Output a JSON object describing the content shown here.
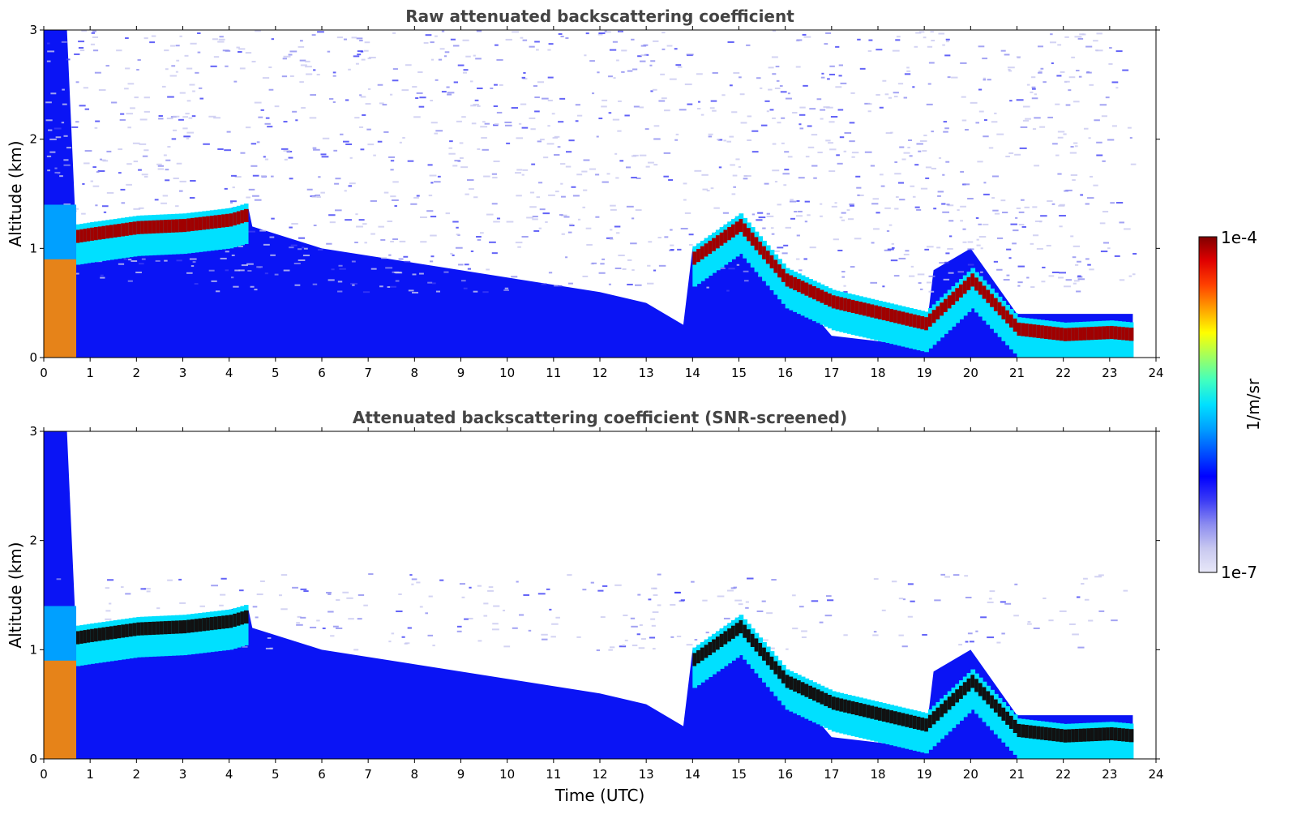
{
  "chart_data": [
    {
      "type": "heatmap",
      "title": "Raw attenuated backscattering coefficient",
      "xlabel": "",
      "ylabel": "Altitude (km)",
      "xlim": [
        0,
        24
      ],
      "ylim": [
        0,
        3
      ],
      "xticks": [
        "0",
        "1",
        "2",
        "3",
        "4",
        "5",
        "6",
        "7",
        "8",
        "9",
        "10",
        "11",
        "12",
        "13",
        "14",
        "15",
        "16",
        "17",
        "18",
        "19",
        "20",
        "21",
        "22",
        "23",
        "24"
      ],
      "yticks": [
        "0",
        "1",
        "2",
        "3"
      ],
      "data_end_time": 23.5,
      "cloud_layer": {
        "times": [
          0.7,
          1,
          2,
          3,
          4,
          4.4,
          14,
          15,
          16,
          17,
          18,
          19,
          20,
          21,
          22,
          23,
          23.5
        ],
        "altitudes_km": [
          1.1,
          1.12,
          1.18,
          1.2,
          1.25,
          1.3,
          0.9,
          1.2,
          0.7,
          0.5,
          0.4,
          0.3,
          0.7,
          0.25,
          0.2,
          0.22,
          0.2
        ]
      }
    },
    {
      "type": "heatmap",
      "title": "Attenuated backscattering coefficient (SNR-screened)",
      "xlabel": "Time (UTC)",
      "ylabel": "Altitude (km)",
      "xlim": [
        0,
        24
      ],
      "ylim": [
        0,
        3
      ],
      "xticks": [
        "0",
        "1",
        "2",
        "3",
        "4",
        "5",
        "6",
        "7",
        "8",
        "9",
        "10",
        "11",
        "12",
        "13",
        "14",
        "15",
        "16",
        "17",
        "18",
        "19",
        "20",
        "21",
        "22",
        "23",
        "24"
      ],
      "yticks": [
        "0",
        "1",
        "2",
        "3"
      ],
      "data_end_time": 23.5
    }
  ],
  "colorbar": {
    "label": "1/m/sr",
    "max_label": "1e-4",
    "min_label": "1e-7",
    "colors": [
      "#e8e8f8",
      "#c8c8f0",
      "#8c8cf0",
      "#3c3cf5",
      "#0000ff",
      "#0050ff",
      "#00a0ff",
      "#00e0ff",
      "#40ffc0",
      "#a0ff60",
      "#ffff00",
      "#ffa000",
      "#ff4000",
      "#e00000",
      "#800000"
    ]
  }
}
